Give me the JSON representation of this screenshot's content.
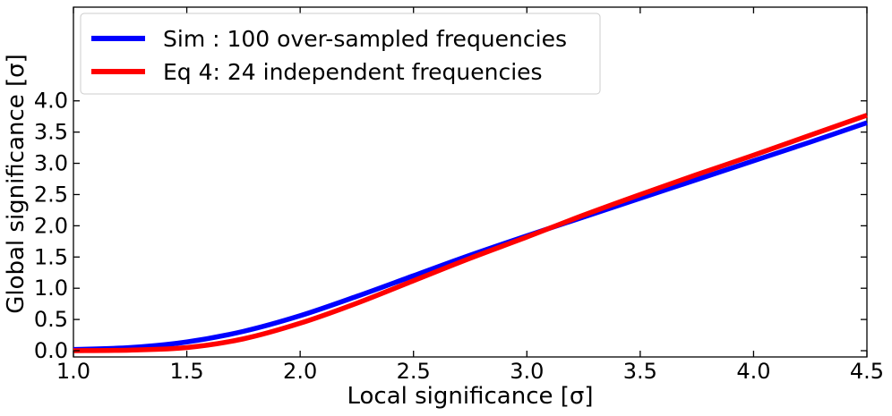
{
  "chart_data": {
    "type": "line",
    "title": "",
    "xlabel": "Local significance [σ]",
    "ylabel": "Global significance [σ]",
    "xlim": [
      1.0,
      4.5
    ],
    "ylim": [
      -0.1,
      5.5
    ],
    "grid": false,
    "legend_position": "top-left",
    "xticks": [
      1.0,
      1.5,
      2.0,
      2.5,
      3.0,
      3.5,
      4.0,
      4.5
    ],
    "xtick_labels": [
      "1.0",
      "1.5",
      "2.0",
      "2.5",
      "3.0",
      "3.5",
      "4.0",
      "4.5"
    ],
    "yticks": [
      0.0,
      0.5,
      1.0,
      1.5,
      2.0,
      2.5,
      3.0,
      3.5,
      4.0
    ],
    "ytick_labels": [
      "0.0",
      "0.5",
      "1.0",
      "1.5",
      "2.0",
      "2.5",
      "3.0",
      "3.5",
      "4.0"
    ],
    "series": [
      {
        "name": "Sim : 100 over-sampled frequencies",
        "color": "#0000ff",
        "x": [
          1.0,
          1.25,
          1.5,
          1.75,
          2.0,
          2.25,
          2.5,
          2.75,
          3.0,
          3.25,
          3.5,
          3.75,
          4.0,
          4.25,
          4.5
        ],
        "y": [
          0.02,
          0.05,
          0.14,
          0.31,
          0.56,
          0.87,
          1.2,
          1.53,
          1.84,
          2.14,
          2.44,
          2.74,
          3.04,
          3.34,
          3.65
        ]
      },
      {
        "name": "Eq 4: 24 independent frequencies",
        "color": "#ff0000",
        "x": [
          1.0,
          1.25,
          1.5,
          1.75,
          2.0,
          2.25,
          2.5,
          2.75,
          3.0,
          3.25,
          3.5,
          3.75,
          4.0,
          4.25,
          4.5
        ],
        "y": [
          0.0,
          0.01,
          0.05,
          0.19,
          0.44,
          0.76,
          1.12,
          1.48,
          1.82,
          2.17,
          2.5,
          2.82,
          3.13,
          3.45,
          3.77
        ]
      }
    ]
  }
}
